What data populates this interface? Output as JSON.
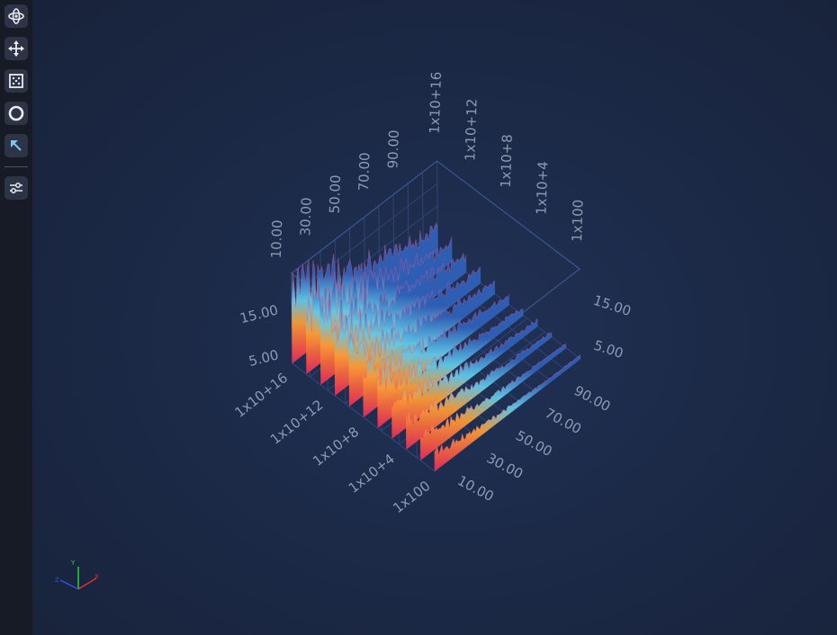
{
  "toolbar": {
    "tools": [
      {
        "name": "rotate-tool",
        "icon": "orbit-icon"
      },
      {
        "name": "pan-tool",
        "icon": "move-arrows-icon"
      },
      {
        "name": "zoom-extents-tool",
        "icon": "zoom-extents-icon"
      },
      {
        "name": "mousewheel-zoom-tool",
        "icon": "ring-icon"
      },
      {
        "name": "cursor-tool",
        "icon": "arrow-up-left-icon"
      },
      {
        "name": "settings-tool",
        "icon": "sliders-icon"
      }
    ]
  },
  "chart_data": {
    "type": "surface-3d",
    "colormap": [
      "#e8285f",
      "#f06040",
      "#f79a35",
      "#5fc8e8",
      "#2f5fb8"
    ],
    "x_axis": {
      "ticks": [
        "10.00",
        "30.00",
        "50.00",
        "70.00",
        "90.00"
      ],
      "range": [
        0,
        100
      ]
    },
    "z_axis": {
      "ticks": [
        "1x100",
        "1x10+4",
        "1x10+8",
        "1x10+12",
        "1x10+16"
      ],
      "scale": "log"
    },
    "y_axis": {
      "ticks": [
        "5.00",
        "15.00"
      ],
      "range": [
        0,
        20
      ]
    },
    "far_wall_z_ticks": [
      "1x10+16",
      "1x10+12",
      "1x10+8",
      "1x10+4",
      "1x100"
    ],
    "back_x_ticks": [
      "10.00",
      "30.00",
      "50.00",
      "70.00",
      "90.00"
    ],
    "right_y_ticks": [
      "15.00",
      "5.00"
    ],
    "near_x_ticks": [
      "90.00",
      "70.00",
      "50.00",
      "30.00",
      "10.00"
    ],
    "near_z_ticks": [
      "1x10+16",
      "1x10+12",
      "1x10+8",
      "1x10+4",
      "1x100"
    ],
    "left_y_ticks": [
      "15.00",
      "5.00"
    ],
    "axis_gizmo": {
      "x": "X",
      "y": "Y",
      "z": "Z",
      "x_color": "#e03030",
      "y_color": "#30d030",
      "z_color": "#3050e0"
    }
  }
}
